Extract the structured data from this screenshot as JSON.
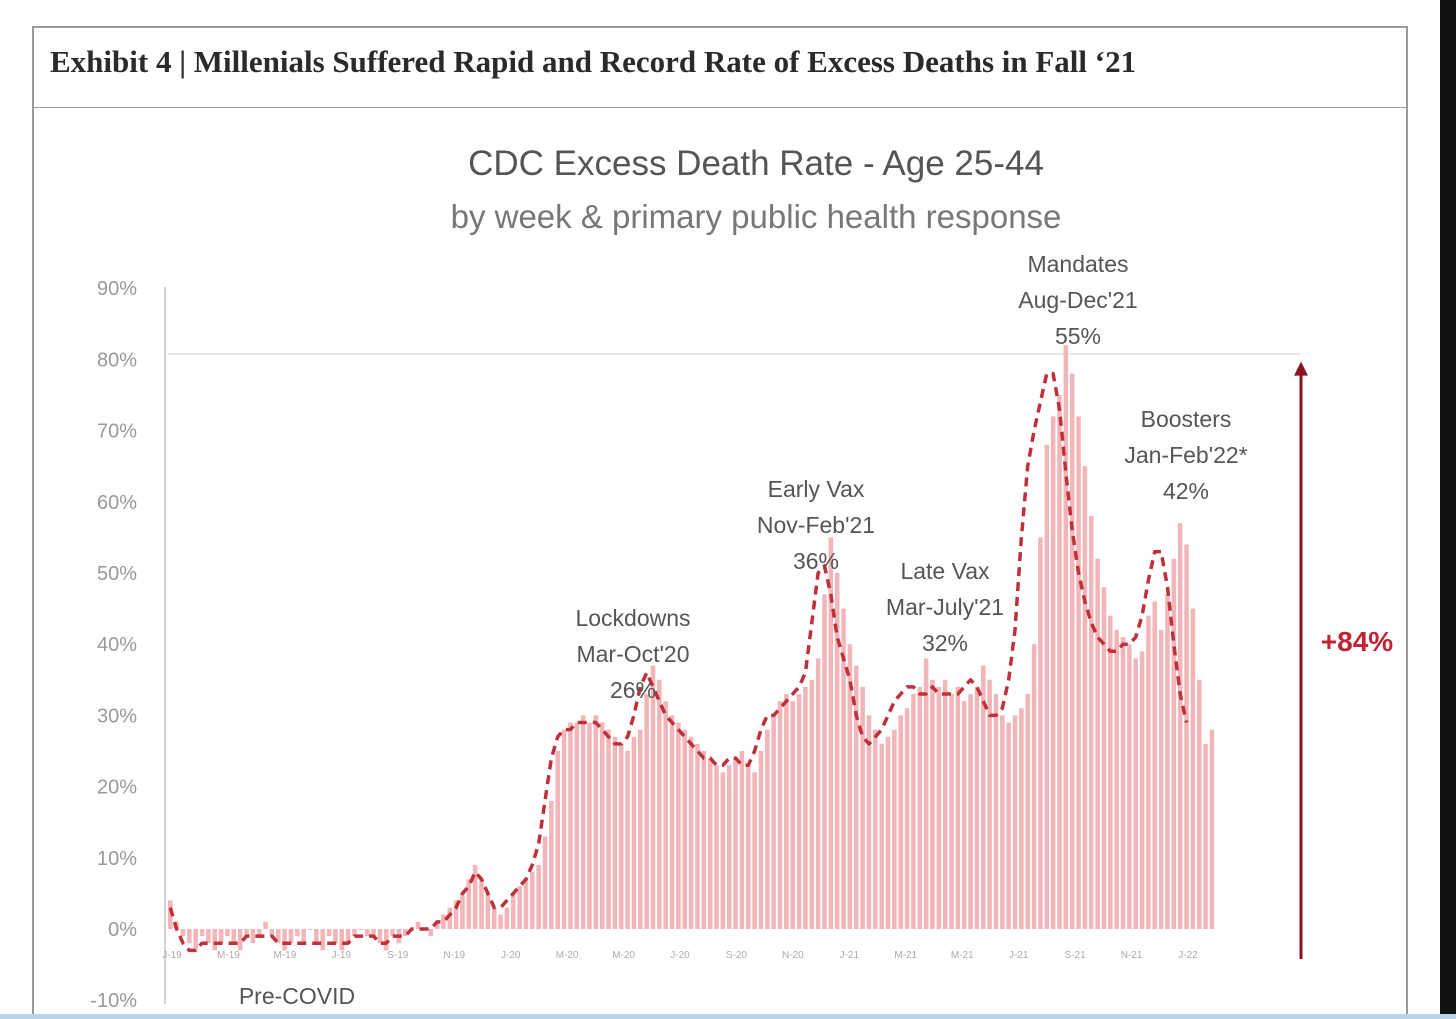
{
  "exhibit_title": "Exhibit 4 | Millenials Suffered Rapid and Record Rate of Excess Deaths in Fall ‘21",
  "chart_data": {
    "type": "bar",
    "title": "CDC Excess Death Rate - Age 25-44",
    "subtitle": "by week & primary public health response",
    "xlabel": "",
    "ylabel": "",
    "ylim": [
      -10,
      90
    ],
    "yticks": [
      "-10%",
      "0%",
      "10%",
      "20%",
      "30%",
      "40%",
      "50%",
      "60%",
      "70%",
      "80%",
      "90%"
    ],
    "x_ticks": [
      "J-19",
      "M-19",
      "M-19",
      "J-19",
      "S-19",
      "N-19",
      "J-20",
      "M-20",
      "M-20",
      "J-20",
      "S-20",
      "N-20",
      "J-21",
      "M-21",
      "M-21",
      "J-21",
      "S-21",
      "N-21",
      "J-22"
    ],
    "grid": false,
    "series": [
      {
        "style": "bars",
        "color": "#f2b6b9",
        "values": [
          4,
          1,
          -1,
          -2,
          -3,
          -1,
          -2,
          -3,
          -2,
          -1,
          -2,
          -3,
          -1,
          -2,
          -1,
          1,
          -1,
          -2,
          -3,
          -2,
          -1,
          -2,
          0,
          -2,
          -3,
          -1,
          -2,
          -3,
          -2,
          -1,
          0,
          -1,
          -1,
          -2,
          -3,
          -1,
          -2,
          -1,
          0,
          1,
          0,
          -1,
          1,
          2,
          3,
          4,
          5,
          7,
          9,
          7,
          5,
          3,
          2,
          3,
          5,
          6,
          7,
          8,
          9,
          13,
          18,
          25,
          28,
          29,
          29,
          30,
          29,
          30,
          29,
          28,
          27,
          26,
          25,
          27,
          28,
          33,
          37,
          35,
          32,
          30,
          29,
          28,
          27,
          26,
          25,
          24,
          23,
          22,
          23,
          24,
          25,
          23,
          22,
          25,
          28,
          30,
          32,
          33,
          32,
          33,
          34,
          35,
          38,
          47,
          55,
          50,
          45,
          40,
          37,
          34,
          30,
          28,
          26,
          27,
          28,
          30,
          31,
          33,
          34,
          38,
          35,
          34,
          35,
          33,
          34,
          32,
          33,
          34,
          37,
          35,
          33,
          30,
          29,
          30,
          31,
          33,
          40,
          55,
          68,
          72,
          75,
          82,
          78,
          72,
          65,
          58,
          52,
          48,
          44,
          42,
          41,
          40,
          38,
          39,
          44,
          46,
          42,
          47,
          52,
          57,
          54,
          45,
          35,
          26,
          28
        ]
      },
      {
        "style": "dashed-line",
        "color": "#c0303a",
        "values": [
          3,
          0,
          -2,
          -3,
          -3,
          -2,
          -2,
          -2,
          -2,
          -2,
          -2,
          -2,
          -1,
          -1,
          -1,
          -1,
          -1,
          -2,
          -2,
          -2,
          -2,
          -2,
          -2,
          -2,
          -2,
          -2,
          -2,
          -2,
          -2,
          -1,
          -1,
          -1,
          -1,
          -2,
          -2,
          -1,
          -1,
          -1,
          0,
          0,
          0,
          0,
          1,
          1,
          2,
          3,
          5,
          6,
          8,
          7,
          5,
          3,
          3,
          4,
          5,
          6,
          7,
          9,
          12,
          18,
          24,
          27,
          28,
          28,
          29,
          29,
          29,
          29,
          28,
          27,
          26,
          26,
          27,
          30,
          34,
          36,
          34,
          32,
          30,
          29,
          28,
          27,
          26,
          25,
          24,
          24,
          23,
          23,
          24,
          24,
          23,
          23,
          25,
          28,
          30,
          30,
          31,
          32,
          33,
          34,
          36,
          43,
          50,
          51,
          47,
          41,
          38,
          35,
          30,
          27,
          26,
          27,
          28,
          30,
          32,
          33,
          34,
          34,
          33,
          33,
          34,
          33,
          33,
          33,
          33,
          34,
          35,
          34,
          32,
          30,
          30,
          31,
          35,
          42,
          55,
          65,
          70,
          74,
          78,
          78,
          73,
          64,
          56,
          50,
          46,
          43,
          41,
          40,
          39,
          39,
          40,
          40,
          41,
          44,
          49,
          53,
          53,
          48,
          40,
          33,
          29
        ]
      }
    ],
    "annotations": [
      {
        "lines": [
          "Lockdowns",
          "Mar-Oct'20",
          "26%"
        ]
      },
      {
        "lines": [
          "Early Vax",
          "Nov-Feb'21",
          "36%"
        ]
      },
      {
        "lines": [
          "Late Vax",
          "Mar-July'21",
          "32%"
        ]
      },
      {
        "lines": [
          "Mandates",
          "Aug-Dec'21",
          "55%"
        ]
      },
      {
        "lines": [
          "Boosters",
          "Jan-Feb'22*",
          "42%"
        ]
      },
      {
        "lines": [
          "Pre-COVID"
        ]
      }
    ],
    "callout": {
      "label": "+84%",
      "color": "#8b1220",
      "from_value": 0,
      "to_value": 78
    }
  }
}
